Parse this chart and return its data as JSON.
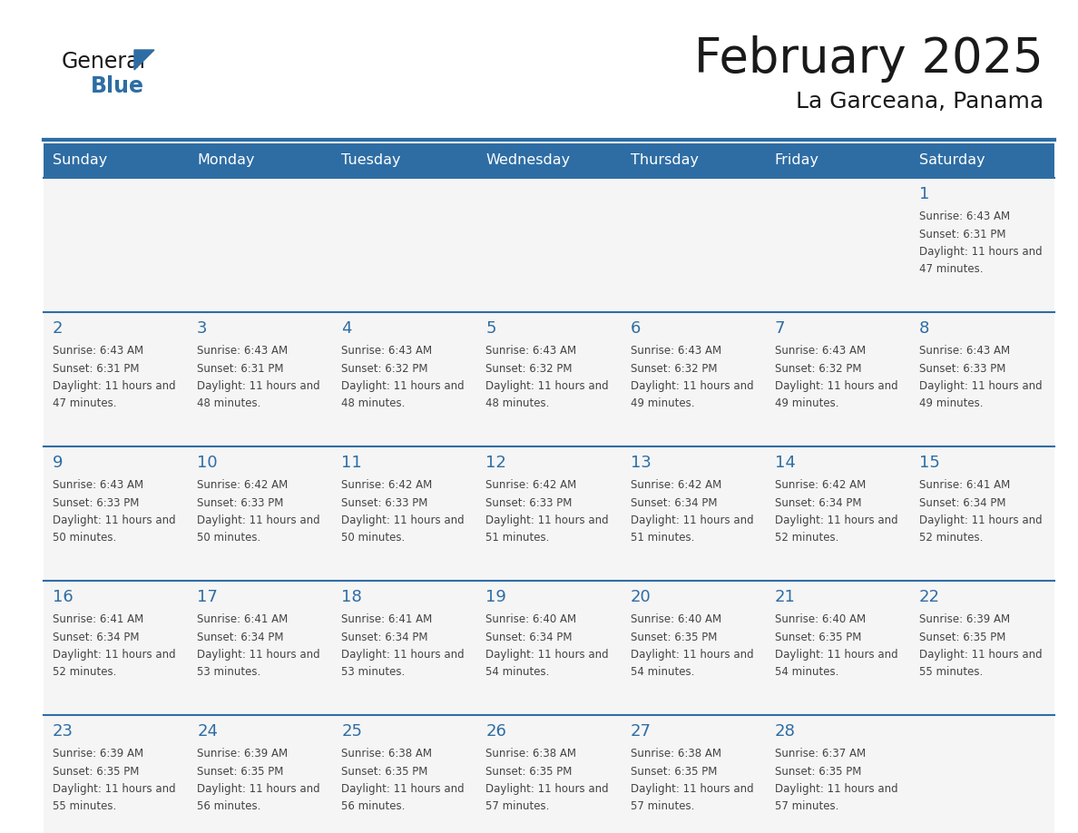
{
  "title": "February 2025",
  "subtitle": "La Garceana, Panama",
  "days_of_week": [
    "Sunday",
    "Monday",
    "Tuesday",
    "Wednesday",
    "Thursday",
    "Friday",
    "Saturday"
  ],
  "header_bg_color": "#2E6DA4",
  "header_text_color": "#FFFFFF",
  "cell_bg_color": "#F5F5F5",
  "border_color": "#2E6DA4",
  "day_number_color": "#2E6DA4",
  "text_color": "#444444",
  "logo_general_color": "#1a1a1a",
  "logo_blue_color": "#2E6DA4",
  "calendar_data": [
    [
      null,
      null,
      null,
      null,
      null,
      null,
      {
        "day": 1,
        "sunrise": "6:43 AM",
        "sunset": "6:31 PM",
        "daylight": "11 hours and 47 minutes."
      }
    ],
    [
      {
        "day": 2,
        "sunrise": "6:43 AM",
        "sunset": "6:31 PM",
        "daylight": "11 hours and 47 minutes."
      },
      {
        "day": 3,
        "sunrise": "6:43 AM",
        "sunset": "6:31 PM",
        "daylight": "11 hours and 48 minutes."
      },
      {
        "day": 4,
        "sunrise": "6:43 AM",
        "sunset": "6:32 PM",
        "daylight": "11 hours and 48 minutes."
      },
      {
        "day": 5,
        "sunrise": "6:43 AM",
        "sunset": "6:32 PM",
        "daylight": "11 hours and 48 minutes."
      },
      {
        "day": 6,
        "sunrise": "6:43 AM",
        "sunset": "6:32 PM",
        "daylight": "11 hours and 49 minutes."
      },
      {
        "day": 7,
        "sunrise": "6:43 AM",
        "sunset": "6:32 PM",
        "daylight": "11 hours and 49 minutes."
      },
      {
        "day": 8,
        "sunrise": "6:43 AM",
        "sunset": "6:33 PM",
        "daylight": "11 hours and 49 minutes."
      }
    ],
    [
      {
        "day": 9,
        "sunrise": "6:43 AM",
        "sunset": "6:33 PM",
        "daylight": "11 hours and 50 minutes."
      },
      {
        "day": 10,
        "sunrise": "6:42 AM",
        "sunset": "6:33 PM",
        "daylight": "11 hours and 50 minutes."
      },
      {
        "day": 11,
        "sunrise": "6:42 AM",
        "sunset": "6:33 PM",
        "daylight": "11 hours and 50 minutes."
      },
      {
        "day": 12,
        "sunrise": "6:42 AM",
        "sunset": "6:33 PM",
        "daylight": "11 hours and 51 minutes."
      },
      {
        "day": 13,
        "sunrise": "6:42 AM",
        "sunset": "6:34 PM",
        "daylight": "11 hours and 51 minutes."
      },
      {
        "day": 14,
        "sunrise": "6:42 AM",
        "sunset": "6:34 PM",
        "daylight": "11 hours and 52 minutes."
      },
      {
        "day": 15,
        "sunrise": "6:41 AM",
        "sunset": "6:34 PM",
        "daylight": "11 hours and 52 minutes."
      }
    ],
    [
      {
        "day": 16,
        "sunrise": "6:41 AM",
        "sunset": "6:34 PM",
        "daylight": "11 hours and 52 minutes."
      },
      {
        "day": 17,
        "sunrise": "6:41 AM",
        "sunset": "6:34 PM",
        "daylight": "11 hours and 53 minutes."
      },
      {
        "day": 18,
        "sunrise": "6:41 AM",
        "sunset": "6:34 PM",
        "daylight": "11 hours and 53 minutes."
      },
      {
        "day": 19,
        "sunrise": "6:40 AM",
        "sunset": "6:34 PM",
        "daylight": "11 hours and 54 minutes."
      },
      {
        "day": 20,
        "sunrise": "6:40 AM",
        "sunset": "6:35 PM",
        "daylight": "11 hours and 54 minutes."
      },
      {
        "day": 21,
        "sunrise": "6:40 AM",
        "sunset": "6:35 PM",
        "daylight": "11 hours and 54 minutes."
      },
      {
        "day": 22,
        "sunrise": "6:39 AM",
        "sunset": "6:35 PM",
        "daylight": "11 hours and 55 minutes."
      }
    ],
    [
      {
        "day": 23,
        "sunrise": "6:39 AM",
        "sunset": "6:35 PM",
        "daylight": "11 hours and 55 minutes."
      },
      {
        "day": 24,
        "sunrise": "6:39 AM",
        "sunset": "6:35 PM",
        "daylight": "11 hours and 56 minutes."
      },
      {
        "day": 25,
        "sunrise": "6:38 AM",
        "sunset": "6:35 PM",
        "daylight": "11 hours and 56 minutes."
      },
      {
        "day": 26,
        "sunrise": "6:38 AM",
        "sunset": "6:35 PM",
        "daylight": "11 hours and 57 minutes."
      },
      {
        "day": 27,
        "sunrise": "6:38 AM",
        "sunset": "6:35 PM",
        "daylight": "11 hours and 57 minutes."
      },
      {
        "day": 28,
        "sunrise": "6:37 AM",
        "sunset": "6:35 PM",
        "daylight": "11 hours and 57 minutes."
      },
      null
    ]
  ]
}
